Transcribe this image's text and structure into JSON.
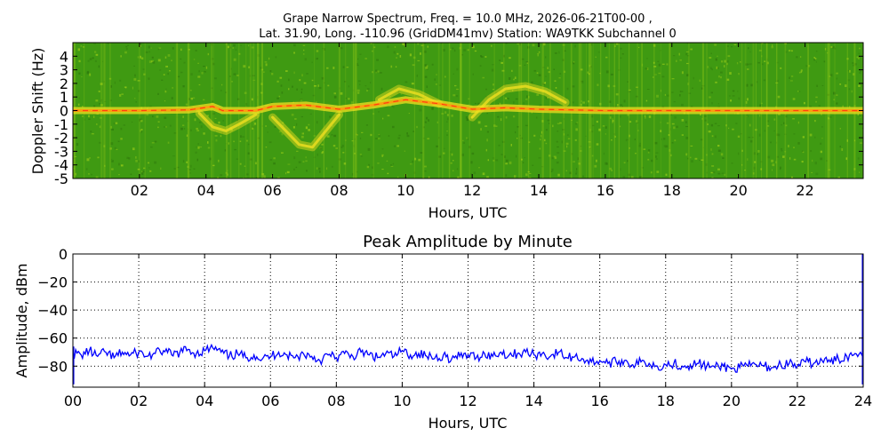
{
  "chart_data": [
    {
      "type": "heatmap",
      "title_line1": "Grape Narrow Spectrum, Freq. = 10.0 MHz, 2026-06-21T00-00 ,",
      "title_line2": "Lat.  31.90, Long. -110.96 (GridDM41mv) Station: WA9TKK Subchannel 0",
      "xlabel": "Hours, UTC",
      "ylabel": "Doppler Shift (Hz)",
      "xlim": [
        0,
        23.75
      ],
      "ylim": [
        -5,
        5
      ],
      "x_ticks": [
        2,
        4,
        6,
        8,
        10,
        12,
        14,
        16,
        18,
        20,
        22
      ],
      "x_tick_labels": [
        "02",
        "04",
        "06",
        "08",
        "10",
        "12",
        "14",
        "16",
        "18",
        "20",
        "22"
      ],
      "y_ticks": [
        -5,
        -4,
        -3,
        -2,
        -1,
        0,
        1,
        2,
        3,
        4
      ],
      "y_tick_labels": [
        "-5",
        "-4",
        "-3",
        "-2",
        "-1",
        "0",
        "1",
        "2",
        "3",
        "4"
      ],
      "colors": {
        "background": "#3f9a12",
        "mid": "#9acd18",
        "high": "#f0e020",
        "peak": "#ff3010"
      },
      "carrier_trace": [
        [
          0,
          0
        ],
        [
          2,
          0
        ],
        [
          3.5,
          0.05
        ],
        [
          4.2,
          0.3
        ],
        [
          4.5,
          0
        ],
        [
          5.5,
          0
        ],
        [
          6,
          0.3
        ],
        [
          7,
          0.4
        ],
        [
          8,
          0.1
        ],
        [
          9,
          0.4
        ],
        [
          10,
          0.8
        ],
        [
          11,
          0.5
        ],
        [
          12,
          0.1
        ],
        [
          13,
          0.2
        ],
        [
          14,
          0.1
        ],
        [
          16,
          0
        ],
        [
          19,
          0
        ],
        [
          23.75,
          0
        ]
      ],
      "diffuse_traces": [
        {
          "points": [
            [
              3.8,
              -0.2
            ],
            [
              4.2,
              -1.2
            ],
            [
              4.6,
              -1.5
            ],
            [
              5.0,
              -1.0
            ],
            [
              5.5,
              -0.3
            ]
          ]
        },
        {
          "points": [
            [
              6.0,
              -0.5
            ],
            [
              6.4,
              -1.5
            ],
            [
              6.8,
              -2.5
            ],
            [
              7.2,
              -2.7
            ],
            [
              7.6,
              -1.5
            ],
            [
              8.0,
              -0.3
            ]
          ]
        },
        {
          "points": [
            [
              9.2,
              0.8
            ],
            [
              9.8,
              1.6
            ],
            [
              10.4,
              1.2
            ],
            [
              11.0,
              0.5
            ]
          ]
        },
        {
          "points": [
            [
              12.0,
              -0.5
            ],
            [
              12.5,
              0.8
            ],
            [
              13.0,
              1.6
            ],
            [
              13.6,
              1.8
            ],
            [
              14.2,
              1.4
            ],
            [
              14.8,
              0.6
            ]
          ]
        }
      ]
    },
    {
      "type": "line",
      "title": "Peak Amplitude by Minute",
      "xlabel": "Hours, UTC",
      "ylabel": "Amplitude, dBm",
      "xlim": [
        0,
        24
      ],
      "ylim": [
        -95,
        0
      ],
      "grid": true,
      "x_ticks": [
        0,
        2,
        4,
        6,
        8,
        10,
        12,
        14,
        16,
        18,
        20,
        22,
        24
      ],
      "x_tick_labels": [
        "00",
        "02",
        "04",
        "06",
        "08",
        "10",
        "12",
        "14",
        "16",
        "18",
        "20",
        "22",
        "24"
      ],
      "y_ticks": [
        0,
        -20,
        -40,
        -60,
        -80
      ],
      "y_tick_labels": [
        "0",
        "−20",
        "−40",
        "−60",
        "−80"
      ],
      "line_color": "#0000ff",
      "series": [
        {
          "x": [
            0.0,
            0.25,
            0.5,
            0.75,
            1.0,
            1.25,
            1.5,
            1.75,
            2.0,
            2.25,
            2.5,
            2.75,
            3.0,
            3.25,
            3.5,
            3.75,
            4.0,
            4.25,
            4.5,
            4.75,
            5.0,
            5.25,
            5.5,
            5.75,
            6.0,
            6.25,
            6.5,
            6.75,
            7.0,
            7.25,
            7.5,
            7.75,
            8.0,
            8.25,
            8.5,
            8.75,
            9.0,
            9.25,
            9.5,
            9.75,
            10.0,
            10.25,
            10.5,
            10.75,
            11.0,
            11.25,
            11.5,
            11.75,
            12.0,
            12.25,
            12.5,
            12.75,
            13.0,
            13.25,
            13.5,
            13.75,
            14.0,
            14.25,
            14.5,
            14.75,
            15.0,
            15.25,
            15.5,
            15.75,
            16.0,
            16.25,
            16.5,
            16.75,
            17.0,
            17.25,
            17.5,
            17.75,
            18.0,
            18.25,
            18.5,
            18.75,
            19.0,
            19.25,
            19.5,
            19.75,
            20.0,
            20.25,
            20.5,
            20.75,
            21.0,
            21.25,
            21.5,
            21.75,
            22.0,
            22.25,
            22.5,
            22.75,
            23.0,
            23.25,
            23.5,
            23.75,
            24.0
          ],
          "y": [
            -71,
            -72,
            -69,
            -73,
            -70,
            -74,
            -70,
            -72,
            -70,
            -73,
            -71,
            -69,
            -72,
            -70,
            -68,
            -71,
            -69,
            -67,
            -70,
            -73,
            -71,
            -74,
            -72,
            -75,
            -73,
            -70,
            -72,
            -74,
            -71,
            -73,
            -76,
            -72,
            -74,
            -71,
            -73,
            -70,
            -72,
            -74,
            -71,
            -73,
            -69,
            -72,
            -71,
            -73,
            -74,
            -72,
            -75,
            -73,
            -72,
            -74,
            -71,
            -73,
            -70,
            -72,
            -71,
            -70,
            -72,
            -71,
            -73,
            -70,
            -74,
            -73,
            -75,
            -77,
            -76,
            -78,
            -77,
            -76,
            -79,
            -77,
            -78,
            -80,
            -79,
            -78,
            -80,
            -79,
            -78,
            -80,
            -81,
            -80,
            -82,
            -81,
            -80,
            -79,
            -80,
            -81,
            -79,
            -78,
            -80,
            -77,
            -78,
            -76,
            -77,
            -75,
            -73,
            -71,
            -69
          ],
          "end_spike": [
            -93,
            0
          ]
        }
      ]
    }
  ]
}
